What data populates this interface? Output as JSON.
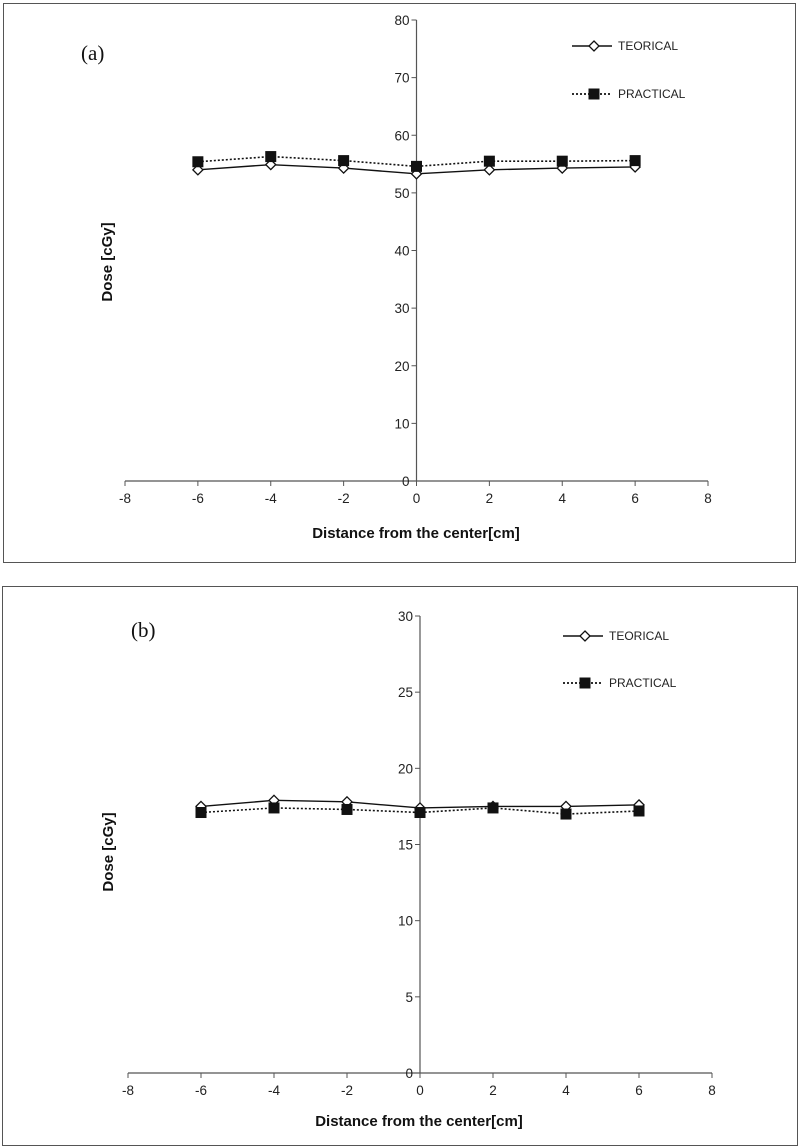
{
  "chart_data": [
    {
      "type": "line",
      "panel_label": "(a)",
      "xlabel": "Distance from the center[cm]",
      "ylabel": "Dose [cGy]",
      "xlim": [
        -8,
        8
      ],
      "ylim": [
        0,
        80
      ],
      "x_ticks": [
        -8,
        -6,
        -4,
        -2,
        0,
        2,
        4,
        6,
        8
      ],
      "y_ticks": [
        0,
        10,
        20,
        30,
        40,
        50,
        60,
        70,
        80
      ],
      "x": [
        -6,
        -4,
        -2,
        0,
        2,
        4,
        6
      ],
      "series": [
        {
          "name": "TEORICAL",
          "values": [
            54.0,
            54.9,
            54.3,
            53.3,
            54.0,
            54.3,
            54.5
          ],
          "marker": "open-diamond",
          "line": "solid"
        },
        {
          "name": "PRACTICAL",
          "values": [
            55.4,
            56.3,
            55.6,
            54.6,
            55.5,
            55.5,
            55.6
          ],
          "marker": "filled-square",
          "line": "dotted"
        }
      ],
      "legend_position": "top-right",
      "grid": false
    },
    {
      "type": "line",
      "panel_label": "(b)",
      "xlabel": "Distance from the center[cm]",
      "ylabel": "Dose [cGy]",
      "xlim": [
        -8,
        8
      ],
      "ylim": [
        0,
        30
      ],
      "x_ticks": [
        -8,
        -6,
        -4,
        -2,
        0,
        2,
        4,
        6,
        8
      ],
      "y_ticks": [
        0,
        5,
        10,
        15,
        20,
        25,
        30
      ],
      "x": [
        -6,
        -4,
        -2,
        0,
        2,
        4,
        6
      ],
      "series": [
        {
          "name": "TEORICAL",
          "values": [
            17.5,
            17.9,
            17.8,
            17.4,
            17.5,
            17.5,
            17.6
          ],
          "marker": "open-diamond",
          "line": "solid"
        },
        {
          "name": "PRACTICAL",
          "values": [
            17.1,
            17.4,
            17.3,
            17.1,
            17.4,
            17.0,
            17.2
          ],
          "marker": "filled-square",
          "line": "dotted"
        }
      ],
      "legend_position": "top-right",
      "grid": false
    }
  ]
}
